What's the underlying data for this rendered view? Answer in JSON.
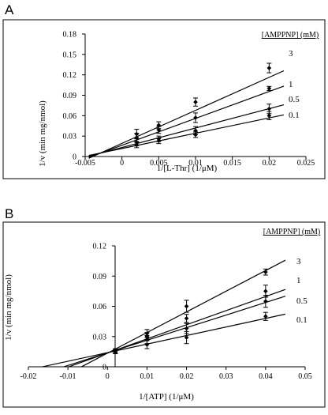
{
  "chart_data": [
    {
      "type": "line",
      "panel_label": "A",
      "xlabel": "1/[L-Thr] (1/μM)",
      "ylabel": "1/v  (min mg/nmol)",
      "xlim": [
        -0.005,
        0.025
      ],
      "ylim": [
        0,
        0.18
      ],
      "xticks": [
        -0.005,
        0,
        0.005,
        0.01,
        0.015,
        0.02,
        0.025
      ],
      "xtick_labels": [
        "-0.005",
        "0",
        "0.005",
        "0.01",
        "0.015",
        "0.02",
        "0.025"
      ],
      "yticks": [
        0,
        0.03,
        0.06,
        0.09,
        0.12,
        0.15,
        0.18
      ],
      "ytick_labels": [
        "0",
        "0.03",
        "0.06",
        "0.09",
        "0.12",
        "0.15",
        "0.18"
      ],
      "legend_title": "[AMPPNP] (mM)",
      "fit_x_range": [
        -0.0045,
        0.022
      ],
      "series": [
        {
          "name": "3",
          "points": [
            [
              0.002,
              0.033
            ],
            [
              0.005,
              0.046
            ],
            [
              0.01,
              0.08
            ],
            [
              0.02,
              0.13
            ]
          ],
          "err": [
            0.007,
            0.005,
            0.006,
            0.007
          ],
          "fit": [
            0.0193,
            4.85
          ]
        },
        {
          "name": "1",
          "points": [
            [
              0.002,
              0.028
            ],
            [
              0.005,
              0.039
            ],
            [
              0.01,
              0.057
            ],
            [
              0.02,
              0.1
            ]
          ],
          "err": [
            0.006,
            0.005,
            0.007,
            0.003
          ],
          "fit": [
            0.0165,
            3.95
          ]
        },
        {
          "name": "0.5",
          "points": [
            [
              0.002,
              0.021
            ],
            [
              0.005,
              0.026
            ],
            [
              0.01,
              0.038
            ],
            [
              0.02,
              0.07
            ]
          ],
          "err": [
            0.005,
            0.004,
            0.006,
            0.007
          ],
          "fit": [
            0.0133,
            2.85
          ]
        },
        {
          "name": "0.1",
          "points": [
            [
              0.002,
              0.017
            ],
            [
              0.005,
              0.023
            ],
            [
              0.01,
              0.032
            ],
            [
              0.02,
              0.06
            ]
          ],
          "err": [
            0.004,
            0.004,
            0.004,
            0.006
          ],
          "fit": [
            0.0117,
            2.25
          ]
        }
      ]
    },
    {
      "type": "line",
      "panel_label": "B",
      "xlabel": "1/[ATP] (1/μM)",
      "ylabel": "1/v  (min mg/nmol)",
      "xlim": [
        -0.02,
        0.05
      ],
      "ylim": [
        0,
        0.12
      ],
      "xticks": [
        -0.02,
        -0.01,
        0,
        0.01,
        0.02,
        0.03,
        0.04,
        0.05
      ],
      "xtick_labels": [
        "-0.02",
        "-0.01",
        "0",
        "0.01",
        "0.02",
        "0.03",
        "0.04",
        "0.05"
      ],
      "yticks": [
        0,
        0.03,
        0.06,
        0.09,
        0.12
      ],
      "ytick_labels": [
        "0",
        "0.03",
        "0.06",
        "0.09",
        "0.12"
      ],
      "legend_title": "[AMPPNP] (mM)",
      "series": [
        {
          "name": "3",
          "points": [
            [
              0.002,
              0.015
            ],
            [
              0.01,
              0.033
            ],
            [
              0.02,
              0.06
            ],
            [
              0.04,
              0.094
            ]
          ],
          "err": [
            0.002,
            0.004,
            0.006,
            0.003
          ],
          "fit": [
            0.0135,
            2.05
          ],
          "fit_x_range": [
            -0.0066,
            0.045
          ]
        },
        {
          "name": "1",
          "points": [
            [
              0.002,
              0.016
            ],
            [
              0.01,
              0.03
            ],
            [
              0.02,
              0.048
            ],
            [
              0.04,
              0.075
            ]
          ],
          "err": [
            0.002,
            0.004,
            0.004,
            0.006
          ],
          "fit": [
            0.0137,
            1.4
          ],
          "fit_x_range": [
            -0.0098,
            0.045
          ]
        },
        {
          "name": "0.5",
          "points": [
            [
              0.002,
              0.015
            ],
            [
              0.01,
              0.027
            ],
            [
              0.02,
              0.038
            ],
            [
              0.04,
              0.065
            ]
          ],
          "err": [
            0.002,
            0.004,
            0.005,
            0.006
          ],
          "fit": [
            0.0138,
            1.25
          ],
          "fit_x_range": [
            -0.011,
            0.045
          ]
        },
        {
          "name": "0.1",
          "points": [
            [
              0.002,
              0.015
            ],
            [
              0.01,
              0.022
            ],
            [
              0.02,
              0.029
            ],
            [
              0.04,
              0.05
            ]
          ],
          "err": [
            0.002,
            0.004,
            0.006,
            0.004
          ],
          "fit": [
            0.014,
            0.85
          ],
          "fit_x_range": [
            -0.0165,
            0.045
          ]
        }
      ]
    }
  ]
}
